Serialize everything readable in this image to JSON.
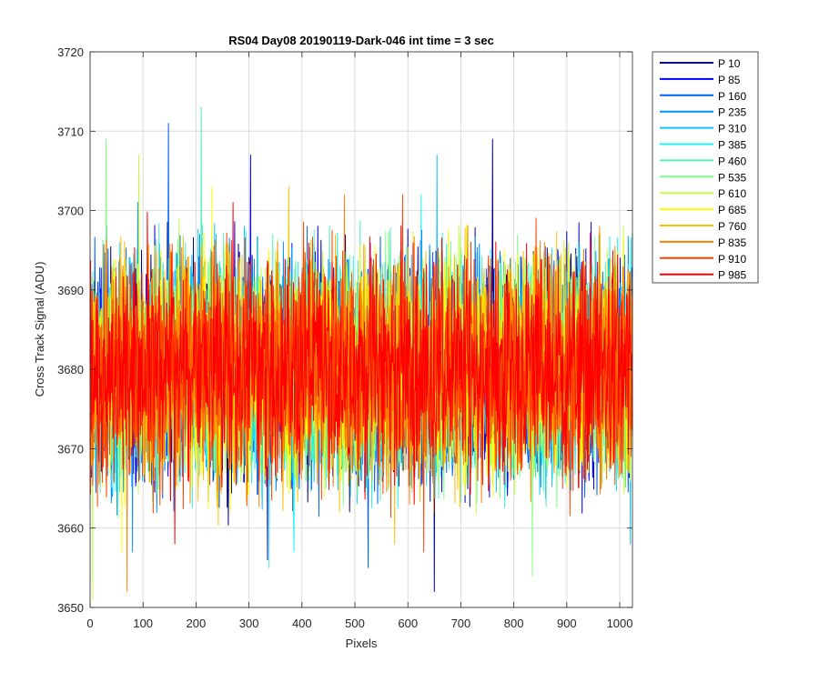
{
  "chart_data": {
    "type": "line",
    "title": "RS04 Day08 20190119-Dark-046 int time = 3 sec",
    "xlabel": "Pixels",
    "ylabel": "Cross Track Signal (ADU)",
    "xlim": [
      0,
      1024
    ],
    "ylim": [
      3650,
      3720
    ],
    "xticks": [
      0,
      100,
      200,
      300,
      400,
      500,
      600,
      700,
      800,
      900,
      1000
    ],
    "yticks": [
      3650,
      3660,
      3670,
      3680,
      3690,
      3700,
      3710,
      3720
    ],
    "grid": true,
    "legend_position": "outside-top-right",
    "noise_center": 3680,
    "noise_typical_range": [
      3664,
      3698
    ],
    "series": [
      {
        "name": "P 10",
        "color": "#00008f",
        "extreme_points": [
          {
            "x": 760,
            "y": 3709
          },
          {
            "x": 650,
            "y": 3652
          }
        ]
      },
      {
        "name": "P 85",
        "color": "#0000ff",
        "extreme_points": [
          {
            "x": 303,
            "y": 3707
          },
          {
            "x": 335,
            "y": 3656
          }
        ]
      },
      {
        "name": "P 160",
        "color": "#0060ff",
        "extreme_points": [
          {
            "x": 148,
            "y": 3711
          },
          {
            "x": 525,
            "y": 3655
          }
        ]
      },
      {
        "name": "P 235",
        "color": "#0090ff",
        "extreme_points": [
          {
            "x": 90,
            "y": 3701
          },
          {
            "x": 80,
            "y": 3657
          }
        ]
      },
      {
        "name": "P 310",
        "color": "#10c0ff",
        "extreme_points": [
          {
            "x": 655,
            "y": 3707
          },
          {
            "x": 1020,
            "y": 3658
          }
        ]
      },
      {
        "name": "P 385",
        "color": "#20f0f0",
        "extreme_points": [
          {
            "x": 625,
            "y": 3702
          },
          {
            "x": 385,
            "y": 3657
          }
        ]
      },
      {
        "name": "P 460",
        "color": "#50f0c0",
        "extreme_points": [
          {
            "x": 210,
            "y": 3713
          },
          {
            "x": 338,
            "y": 3655
          }
        ]
      },
      {
        "name": "P 535",
        "color": "#7fff80",
        "extreme_points": [
          {
            "x": 30,
            "y": 3709
          },
          {
            "x": 835,
            "y": 3654
          }
        ]
      },
      {
        "name": "P 610",
        "color": "#c0ff40",
        "extreme_points": [
          {
            "x": 92,
            "y": 3707
          },
          {
            "x": 5,
            "y": 3651
          }
        ]
      },
      {
        "name": "P 685",
        "color": "#ffff00",
        "extreme_points": [
          {
            "x": 230,
            "y": 3703
          },
          {
            "x": 60,
            "y": 3657
          }
        ]
      },
      {
        "name": "P 760",
        "color": "#ffc000",
        "extreme_points": [
          {
            "x": 375,
            "y": 3703
          },
          {
            "x": 575,
            "y": 3658
          }
        ]
      },
      {
        "name": "P 835",
        "color": "#ff8000",
        "extreme_points": [
          {
            "x": 480,
            "y": 3702
          },
          {
            "x": 70,
            "y": 3652
          }
        ]
      },
      {
        "name": "P 910",
        "color": "#ff4000",
        "extreme_points": [
          {
            "x": 590,
            "y": 3702
          },
          {
            "x": 630,
            "y": 3657
          }
        ]
      },
      {
        "name": "P 985",
        "color": "#ff0000",
        "extreme_points": [
          {
            "x": 270,
            "y": 3701
          },
          {
            "x": 160,
            "y": 3658
          }
        ]
      }
    ]
  }
}
